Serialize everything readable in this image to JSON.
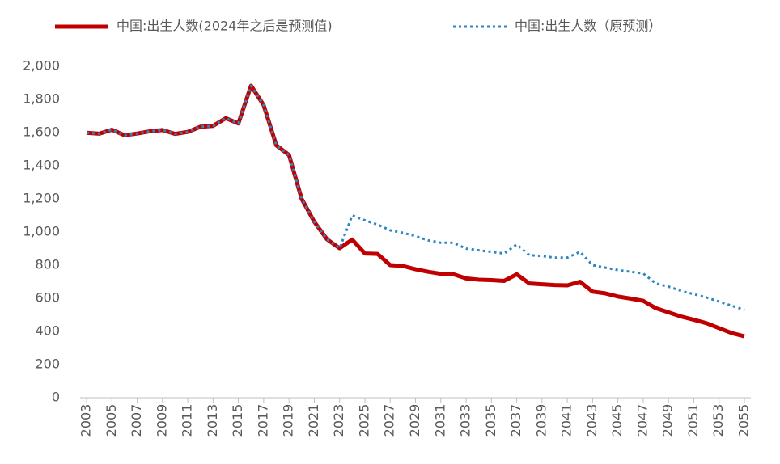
{
  "chart_data": {
    "type": "line",
    "x": [
      2003,
      2004,
      2005,
      2006,
      2007,
      2008,
      2009,
      2010,
      2011,
      2012,
      2013,
      2014,
      2015,
      2016,
      2017,
      2018,
      2019,
      2020,
      2021,
      2022,
      2023,
      2024,
      2025,
      2026,
      2027,
      2028,
      2029,
      2030,
      2031,
      2032,
      2033,
      2034,
      2035,
      2036,
      2037,
      2038,
      2039,
      2040,
      2041,
      2042,
      2043,
      2044,
      2045,
      2046,
      2047,
      2048,
      2049,
      2050,
      2051,
      2052,
      2053,
      2054,
      2055
    ],
    "series": [
      {
        "name": "中国:出生人数(2024年之后是预测值)",
        "color": "#c00000",
        "style": "solid",
        "values": [
          1599,
          1593,
          1617,
          1584,
          1594,
          1608,
          1615,
          1592,
          1604,
          1635,
          1640,
          1687,
          1655,
          1883,
          1765,
          1523,
          1465,
          1200,
          1062,
          956,
          902,
          954,
          870,
          868,
          800,
          795,
          775,
          760,
          748,
          745,
          720,
          712,
          710,
          705,
          745,
          690,
          685,
          680,
          678,
          700,
          640,
          630,
          610,
          598,
          585,
          540,
          515,
          490,
          470,
          450,
          420,
          390,
          370
        ]
      },
      {
        "name": "中国:出生人数（原预测）",
        "color": "#2e86c1",
        "style": "dotted",
        "values": [
          1599,
          1593,
          1617,
          1584,
          1594,
          1608,
          1615,
          1592,
          1604,
          1635,
          1640,
          1687,
          1655,
          1883,
          1765,
          1523,
          1465,
          1200,
          1062,
          956,
          902,
          1100,
          1070,
          1045,
          1010,
          995,
          975,
          950,
          935,
          935,
          900,
          890,
          880,
          870,
          925,
          860,
          855,
          845,
          845,
          880,
          800,
          785,
          770,
          760,
          750,
          690,
          670,
          645,
          625,
          605,
          580,
          555,
          530
        ]
      }
    ],
    "xlim": [
      2003,
      2055
    ],
    "xticks": [
      2003,
      2005,
      2007,
      2009,
      2011,
      2013,
      2015,
      2017,
      2019,
      2021,
      2023,
      2025,
      2027,
      2029,
      2031,
      2033,
      2035,
      2037,
      2039,
      2041,
      2043,
      2045,
      2047,
      2049,
      2051,
      2053,
      2055
    ],
    "ylim": [
      0,
      2000
    ],
    "yticks": [
      0,
      200,
      400,
      600,
      800,
      {
        "value": 1000,
        "label": "1,000"
      },
      {
        "value": 1200,
        "label": "1,200"
      },
      {
        "value": 1400,
        "label": "1,400"
      },
      {
        "value": 1600,
        "label": "1,600"
      },
      {
        "value": 1800,
        "label": "1,800"
      },
      {
        "value": 2000,
        "label": "2,000"
      }
    ],
    "legend": "top"
  }
}
